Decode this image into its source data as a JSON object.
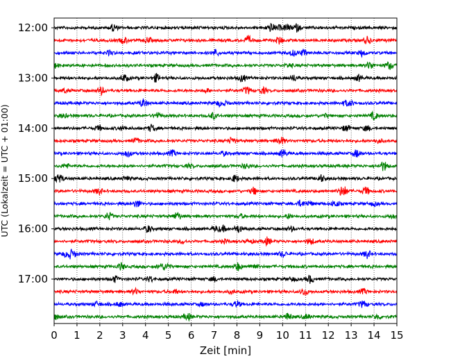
{
  "chart_data": {
    "type": "line",
    "xlabel": "Zeit  [min]",
    "ylabel": "UTC (Lokalzeit = UTC + 01:00)",
    "xlim": [
      0,
      15
    ],
    "x_ticks": [
      0,
      1,
      2,
      3,
      4,
      5,
      6,
      7,
      8,
      9,
      10,
      11,
      12,
      13,
      14,
      15
    ],
    "x_tick_labels": [
      "0",
      "1",
      "2",
      "3",
      "4",
      "5",
      "6",
      "7",
      "8",
      "9",
      "10",
      "11",
      "12",
      "13",
      "14",
      "15"
    ],
    "y_tick_labels": [
      "12:00",
      "13:00",
      "14:00",
      "15:00",
      "16:00",
      "17:00"
    ],
    "trace_start_times": [
      "12:00",
      "12:15",
      "12:30",
      "12:45",
      "13:00",
      "13:15",
      "13:30",
      "13:45",
      "14:00",
      "14:15",
      "14:30",
      "14:45",
      "15:00",
      "15:15",
      "15:30",
      "15:45",
      "16:00",
      "16:15",
      "16:30",
      "16:45",
      "17:00",
      "17:15",
      "17:30",
      "17:45"
    ],
    "trace_minutes": 15,
    "trace_colors": [
      "#000000",
      "#ff0000",
      "#0000ff",
      "#008000"
    ],
    "grid": "vertical dotted lines at each minute"
  }
}
